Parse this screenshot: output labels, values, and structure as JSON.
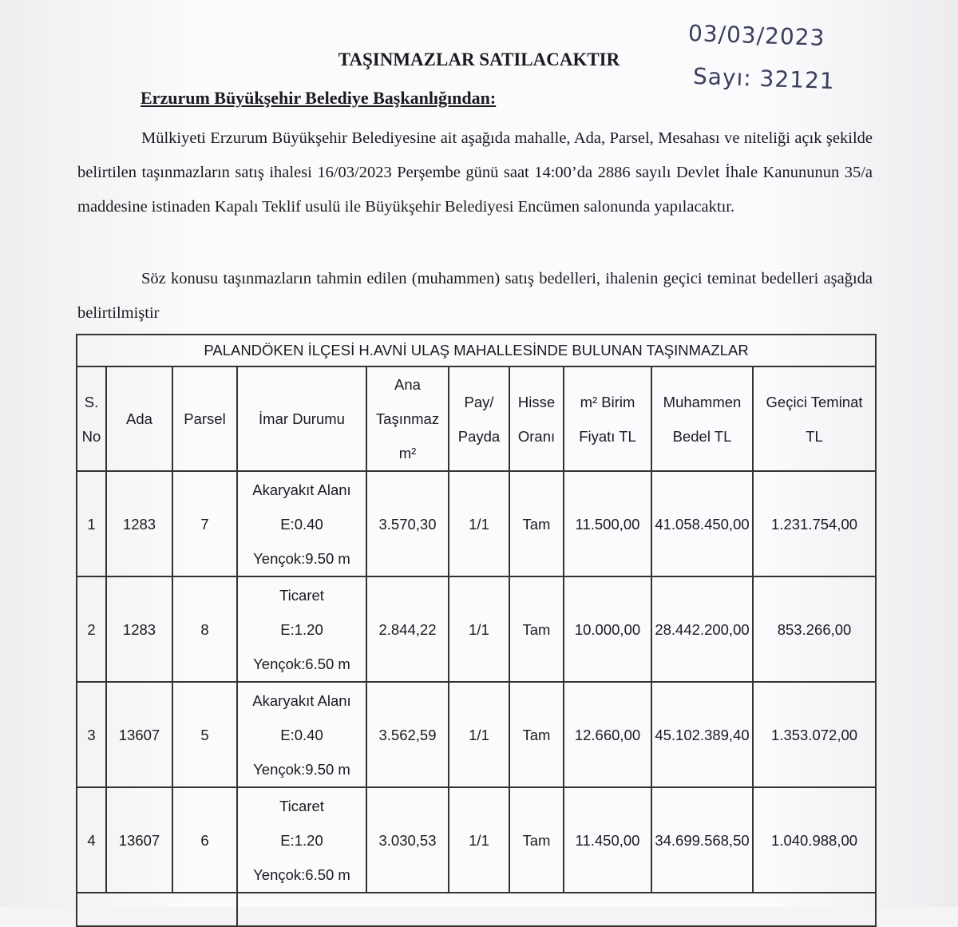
{
  "handwritten": {
    "date": "03/03/2023",
    "number": "Sayı: 32121"
  },
  "title": "TAŞINMAZLAR SATILACAKTIR",
  "subtitle": "Erzurum Büyükşehir Belediye Başkanlığından:",
  "paragraphs": [
    "Mülkiyeti Erzurum Büyükşehir Belediyesine ait aşağıda mahalle, Ada, Parsel, Mesahası ve niteliği açık şekilde belirtilen taşınmazların satış ihalesi 16/03/2023 Perşembe günü saat 14:00’da 2886 sayılı Devlet İhale Kanununun 35/a maddesine istinaden Kapalı Teklif usulü ile Büyükşehir Belediyesi Encümen salonunda yapılacaktır.",
    "Söz konusu taşınmazların tahmin edilen (muhammen) satış bedelleri, ihalenin geçici teminat bedelleri aşağıda belirtilmiştir"
  ],
  "table": {
    "title": "PALANDÖKEN İLÇESİ H.AVNİ ULAŞ MAHALLESİNDE BULUNAN TAŞINMAZLAR",
    "headers": [
      [
        "S.",
        "No"
      ],
      [
        "Ada"
      ],
      [
        "Parsel"
      ],
      [
        "İmar Durumu"
      ],
      [
        "Ana",
        "Taşınmaz",
        "m²"
      ],
      [
        "Pay/",
        "Payda"
      ],
      [
        "Hisse",
        "Oranı"
      ],
      [
        "m² Birim",
        "Fiyatı TL"
      ],
      [
        "Muhammen",
        "Bedel TL"
      ],
      [
        "Geçici Teminat",
        "TL"
      ]
    ],
    "rows": [
      [
        "1",
        "1283",
        "7",
        [
          "Akaryakıt Alanı",
          "E:0.40",
          "Yençok:9.50 m"
        ],
        "3.570,30",
        "1/1",
        "Tam",
        "11.500,00",
        "41.058.450,00",
        "1.231.754,00"
      ],
      [
        "2",
        "1283",
        "8",
        [
          "Ticaret",
          "E:1.20",
          "Yençok:6.50 m"
        ],
        "2.844,22",
        "1/1",
        "Tam",
        "10.000,00",
        "28.442.200,00",
        "853.266,00"
      ],
      [
        "3",
        "13607",
        "5",
        [
          "Akaryakıt Alanı",
          "E:0.40",
          "Yençok:9.50 m"
        ],
        "3.562,59",
        "1/1",
        "Tam",
        "12.660,00",
        "45.102.389,40",
        "1.353.072,00"
      ],
      [
        "4",
        "13607",
        "6",
        [
          "Ticaret",
          "E:1.20",
          "Yençok:6.50 m"
        ],
        "3.030,53",
        "1/1",
        "Tam",
        "11.450,00",
        "34.699.568,50",
        "1.040.988,00"
      ]
    ]
  }
}
